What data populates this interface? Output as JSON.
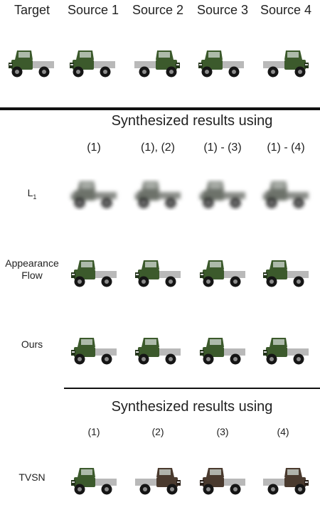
{
  "header": {
    "target": "Target",
    "sources": [
      "Source 1",
      "Source 2",
      "Source 3",
      "Source 4"
    ]
  },
  "section1": {
    "title": "Synthesized results using",
    "columns": [
      "(1)",
      "(1), (2)",
      "(1) - (3)",
      "(1) - (4)"
    ],
    "rows": [
      {
        "label_main": "L",
        "label_sub": "1",
        "kind": "blur"
      },
      {
        "label": "Appearance\nFlow",
        "kind": "flow"
      },
      {
        "label": "Ours",
        "kind": "truck"
      }
    ]
  },
  "section2": {
    "title": "Synthesized results using",
    "columns": [
      "(1)",
      "(2)",
      "(3)",
      "(4)"
    ],
    "rows": [
      {
        "label": "TVSN",
        "kind": "tvsn"
      }
    ]
  },
  "colors": {
    "truck_green": "#3c5a2c",
    "truck_dark": "#23341a",
    "tire": "#151515",
    "flatbed": "#b9b9b9",
    "blur_body": "#6d726a",
    "tvsn_brown": "#4a3a2e",
    "rule": "#111111"
  }
}
